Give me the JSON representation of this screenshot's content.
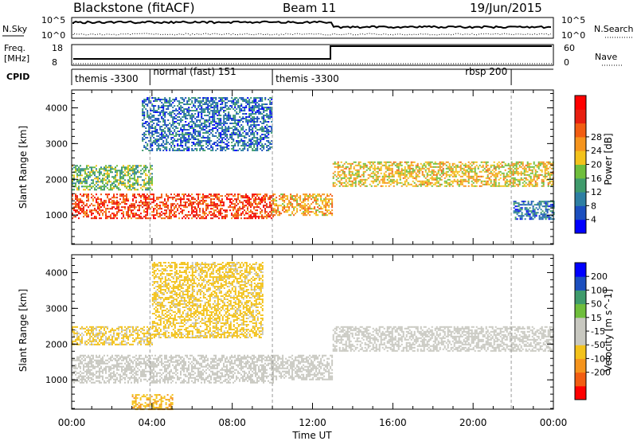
{
  "header": {
    "station": "Blackstone (fitACF)",
    "beam": "Beam 11",
    "date": "19/Jun/2015"
  },
  "top_panels": {
    "nsky_label": "N.Sky",
    "nsearch_label": "N.Search",
    "freq_label_1": "Freq.",
    "freq_label_2": "[MHz]",
    "nave_label": "Nave",
    "cpid_label": "CPID",
    "noise_ticks_left": [
      "10^5",
      "10^0"
    ],
    "noise_ticks_right": [
      "10^5",
      "10^0"
    ],
    "freq_ticks_left": [
      "18",
      "8"
    ],
    "nave_ticks_right": [
      "60",
      "0"
    ]
  },
  "cpid_segments": [
    {
      "label": "themis -3300",
      "start_h": 0.0,
      "end_h": 3.9
    },
    {
      "label": "normal (fast) 151",
      "start_h": 3.9,
      "end_h": 10.0
    },
    {
      "label": "themis -3300",
      "start_h": 10.0,
      "end_h": 21.9
    },
    {
      "label": "rbsp 200",
      "start_h": 21.9,
      "end_h": 24.0
    }
  ],
  "chart_data": [
    {
      "type": "heatmap",
      "title": "Power",
      "ylabel": "Slant Range [km]",
      "xlim": [
        0,
        24
      ],
      "ylim": [
        180,
        4500
      ],
      "y_ticks": [
        "1000",
        "2000",
        "3000",
        "4000"
      ],
      "colorbar": {
        "label": "Power [dB]",
        "range": [
          0,
          32
        ],
        "ticks": [
          "4",
          "8",
          "12",
          "16",
          "20",
          "24",
          "28"
        ],
        "colors": [
          "#0000ff",
          "#1c4fbf",
          "#2e7fa3",
          "#3f9b6c",
          "#6fbe3c",
          "#f3c21b",
          "#f5941d",
          "#f25d12",
          "#e81f10",
          "#ff0000"
        ]
      },
      "bands": [
        {
          "start_h": 0.0,
          "end_h": 10.0,
          "range_start_km": 900,
          "range_end_km": 1600,
          "value_db": 26
        },
        {
          "start_h": 0.0,
          "end_h": 4.0,
          "range_start_km": 1700,
          "range_end_km": 2400,
          "value_db": 13
        },
        {
          "start_h": 10.0,
          "end_h": 13.0,
          "range_start_km": 1000,
          "range_end_km": 1600,
          "value_db": 20
        },
        {
          "start_h": 13.0,
          "end_h": 24.0,
          "range_start_km": 1800,
          "range_end_km": 2500,
          "value_db": 18
        },
        {
          "start_h": 3.5,
          "end_h": 10.0,
          "range_start_km": 2800,
          "range_end_km": 4300,
          "value_db": 7
        },
        {
          "start_h": 22.0,
          "end_h": 24.0,
          "range_start_km": 900,
          "range_end_km": 1400,
          "value_db": 7
        }
      ]
    },
    {
      "type": "heatmap",
      "title": "Velocity",
      "ylabel": "Slant Range [km]",
      "xlabel": "Time UT",
      "xlim": [
        0,
        24
      ],
      "ylim": [
        180,
        4500
      ],
      "x_ticks": [
        "00:00",
        "04:00",
        "08:00",
        "12:00",
        "16:00",
        "20:00",
        "00:00"
      ],
      "y_ticks": [
        "1000",
        "2000",
        "3000",
        "4000"
      ],
      "colorbar": {
        "label": "Velocity [m s^-1]",
        "range": [
          -250,
          250
        ],
        "ticks": [
          "200",
          "100",
          "50",
          "15",
          "-15",
          "-50",
          "-100",
          "-200"
        ],
        "colors": [
          "#ff0000",
          "#f25d12",
          "#f5941d",
          "#f3c21b",
          "#c8c8c0",
          "#c8c8c0",
          "#6fbe3c",
          "#3f9b6c",
          "#1c4fbf",
          "#0000ff"
        ]
      },
      "bands": [
        {
          "start_h": 0.0,
          "end_h": 10.0,
          "range_start_km": 900,
          "range_end_km": 1700,
          "value_ms": 0
        },
        {
          "start_h": 10.0,
          "end_h": 13.0,
          "range_start_km": 1000,
          "range_end_km": 1700,
          "value_ms": 0
        },
        {
          "start_h": 13.0,
          "end_h": 24.0,
          "range_start_km": 1800,
          "range_end_km": 2500,
          "value_ms": 0
        },
        {
          "start_h": 0.0,
          "end_h": 4.0,
          "range_start_km": 2000,
          "range_end_km": 2500,
          "value_ms": -60
        },
        {
          "start_h": 4.0,
          "end_h": 9.5,
          "range_start_km": 2200,
          "range_end_km": 4300,
          "value_ms": -70
        },
        {
          "start_h": 3.0,
          "end_h": 5.0,
          "range_start_km": 180,
          "range_end_km": 600,
          "value_ms": -90
        }
      ]
    }
  ]
}
